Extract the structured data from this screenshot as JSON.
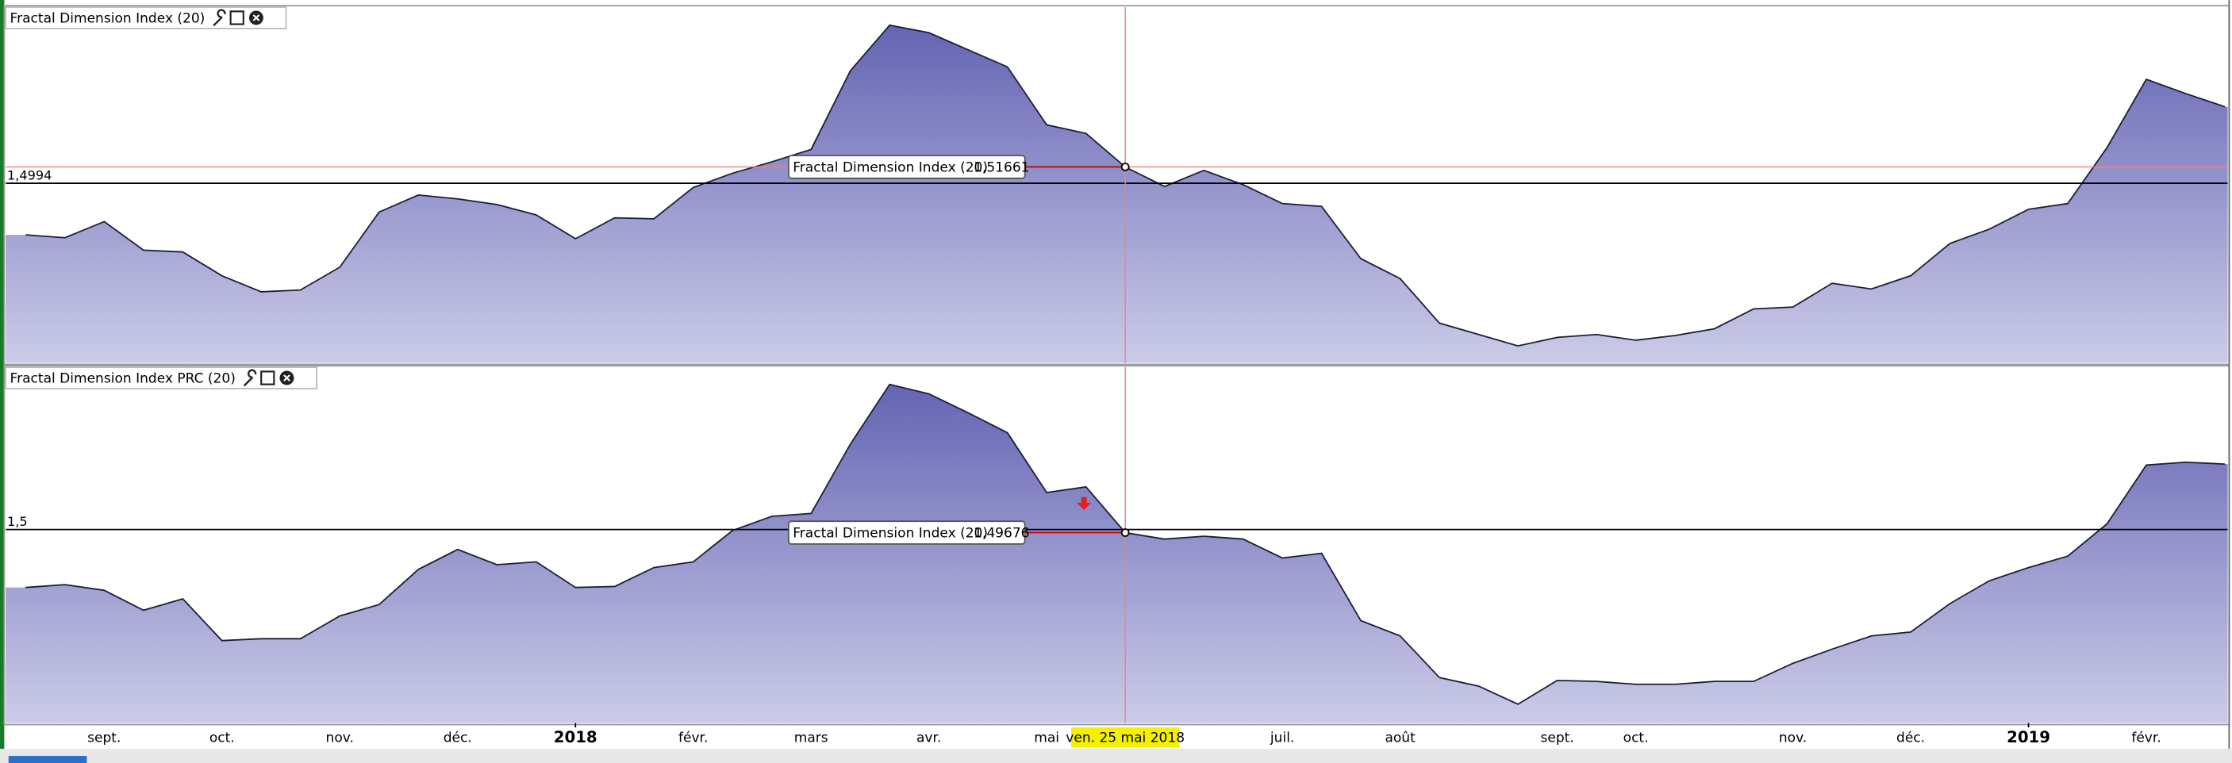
{
  "chart_data": [
    {
      "type": "area",
      "title": "Fractal Dimension Index (20)",
      "tooltip_name": "Fractal Dimension Index (20)",
      "ylim": [
        1.31,
        1.685
      ],
      "level": {
        "value": 1.4994,
        "label": "1,4994"
      },
      "color": "#6a6ab8",
      "values": [
        1.445,
        1.442,
        1.459,
        1.429,
        1.427,
        1.402,
        1.385,
        1.387,
        1.411,
        1.469,
        1.487,
        1.483,
        1.477,
        1.466,
        1.441,
        1.463,
        1.462,
        1.495,
        1.51,
        1.522,
        1.535,
        1.618,
        1.666,
        1.658,
        1.64,
        1.622,
        1.561,
        1.552,
        1.51661,
        1.496,
        1.513,
        1.498,
        1.478,
        1.475,
        1.42,
        1.399,
        1.352,
        1.34,
        1.328,
        1.337,
        1.34,
        1.334,
        1.339,
        1.346,
        1.367,
        1.369,
        1.394,
        1.388,
        1.402,
        1.436,
        1.451,
        1.472,
        1.478,
        1.537,
        1.609,
        1.594,
        1.58
      ],
      "value_labels": [
        null,
        null,
        null,
        null,
        null,
        null,
        null,
        null,
        null,
        null,
        null,
        null,
        null,
        null,
        null,
        null,
        null,
        null,
        null,
        null,
        null,
        null,
        null,
        null,
        null,
        null,
        null,
        null,
        "1,51661",
        null,
        null,
        null,
        null,
        null,
        null,
        null,
        null,
        null,
        null,
        null,
        null,
        null,
        null,
        null,
        null,
        null,
        null,
        null,
        null,
        null,
        null,
        null,
        null,
        null,
        null,
        null,
        null
      ]
    },
    {
      "type": "area",
      "title": "Fractal Dimension Index PRC (20)",
      "tooltip_name": "Fractal Dimension Index (20)",
      "ylim": [
        1.296,
        1.671
      ],
      "level": {
        "value": 1.5,
        "label": "1,5"
      },
      "color": "#6a6ab8",
      "categories": [
        null,
        null,
        "sept.",
        null,
        null,
        "oct.",
        null,
        null,
        "nov.",
        null,
        null,
        "déc.",
        null,
        null,
        "2018",
        null,
        null,
        "févr.",
        null,
        null,
        "mars",
        null,
        null,
        "avr.",
        null,
        null,
        "mai",
        null,
        "ven. 25 mai 2018",
        null,
        null,
        null,
        "juil.",
        null,
        null,
        "août",
        null,
        null,
        null,
        "sept.",
        null,
        "oct.",
        null,
        null,
        null,
        "nov.",
        null,
        null,
        "déc.",
        null,
        null,
        "2019",
        null,
        null,
        "févr.",
        null,
        null
      ],
      "values": [
        1.439,
        1.442,
        1.436,
        1.415,
        1.427,
        1.383,
        1.385,
        1.385,
        1.409,
        1.421,
        1.458,
        1.479,
        1.463,
        1.466,
        1.439,
        1.44,
        1.46,
        1.466,
        1.499,
        1.514,
        1.517,
        1.59,
        1.653,
        1.643,
        1.623,
        1.602,
        1.539,
        1.545,
        1.49676,
        1.49,
        1.493,
        1.49,
        1.47,
        1.475,
        1.404,
        1.388,
        1.344,
        1.335,
        1.316,
        1.341,
        1.34,
        1.337,
        1.337,
        1.34,
        1.34,
        1.359,
        1.374,
        1.388,
        1.392,
        1.422,
        1.446,
        1.46,
        1.472,
        1.506,
        1.568,
        1.571,
        1.569
      ],
      "value_labels": [
        null,
        null,
        null,
        null,
        null,
        null,
        null,
        null,
        null,
        null,
        null,
        null,
        null,
        null,
        null,
        null,
        null,
        null,
        null,
        null,
        null,
        null,
        null,
        null,
        null,
        null,
        null,
        null,
        "1,49676",
        null,
        null,
        null,
        null,
        null,
        null,
        null,
        null,
        null,
        null,
        null,
        null,
        null,
        null,
        null,
        null,
        null,
        null,
        null,
        null,
        null,
        null,
        null,
        null,
        null,
        null,
        null,
        null
      ]
    }
  ]
}
